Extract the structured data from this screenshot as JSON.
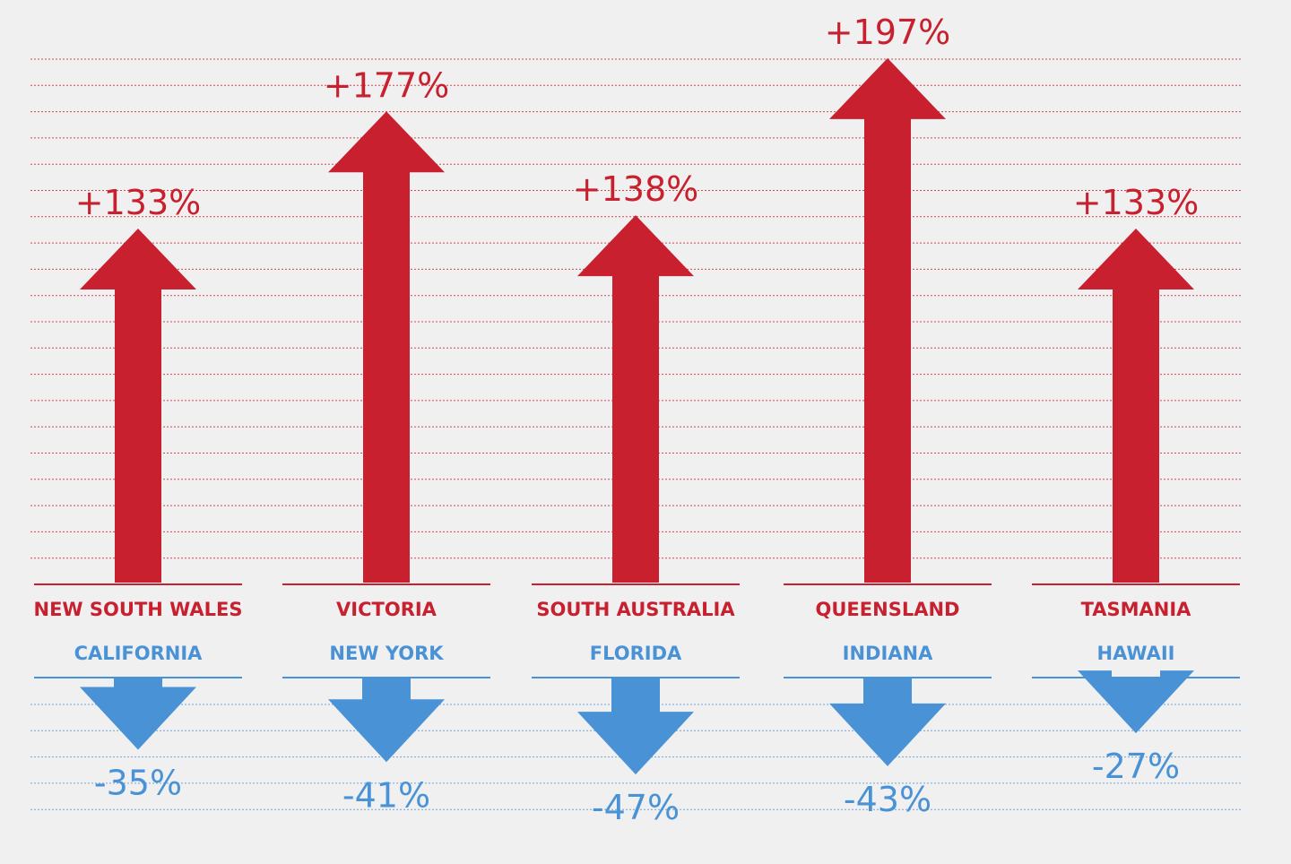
{
  "colors": {
    "up": "#c8202f",
    "down": "#4a92d6",
    "background": "#f0f0f0"
  },
  "chart_data": {
    "type": "bar",
    "categories_up": [
      "NEW SOUTH WALES",
      "VICTORIA",
      "SOUTH AUSTRALIA",
      "QUEENSLAND",
      "TASMANIA"
    ],
    "categories_down": [
      "CALIFORNIA",
      "NEW YORK",
      "FLORIDA",
      "INDIANA",
      "HAWAII"
    ],
    "series": [
      {
        "values": [
          133,
          177,
          138,
          197,
          133
        ],
        "labels": [
          "+133%",
          "+177%",
          "+138%",
          "+197%",
          "+133%"
        ]
      },
      {
        "values": [
          -35,
          -41,
          -47,
          -43,
          -27
        ],
        "labels": [
          "-35%",
          "-41%",
          "-47%",
          "-43%",
          "-27%"
        ]
      }
    ]
  }
}
